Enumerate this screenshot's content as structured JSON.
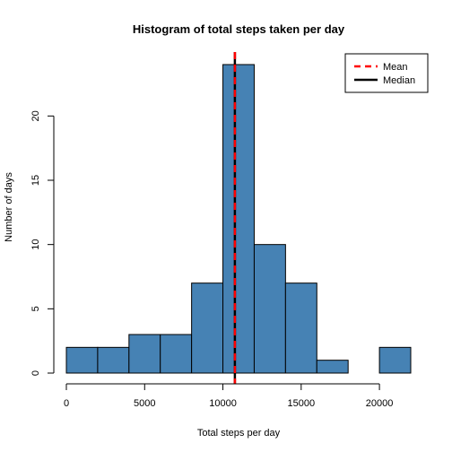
{
  "chart_data": {
    "type": "bar",
    "title": "Histogram of total steps taken per day",
    "xlabel": "Total steps per day",
    "ylabel": "Number of days",
    "bin_edges": [
      0,
      2000,
      4000,
      6000,
      8000,
      10000,
      12000,
      14000,
      16000,
      18000,
      20000,
      22000
    ],
    "values": [
      2,
      2,
      3,
      3,
      7,
      24,
      10,
      7,
      1,
      0,
      2
    ],
    "xlim": [
      0,
      22000
    ],
    "ylim": [
      0,
      24
    ],
    "x_ticks": [
      0,
      5000,
      10000,
      15000,
      20000
    ],
    "y_ticks": [
      0,
      5,
      10,
      15,
      20
    ],
    "x_tick_labels": [
      "0",
      "5000",
      "10000",
      "15000",
      "20000"
    ],
    "y_tick_labels": [
      "0",
      "5",
      "10",
      "15",
      "20"
    ],
    "bar_color": "#4682b4",
    "mean": 10766,
    "median": 10765,
    "mean_color": "#ff0000",
    "median_color": "#000000",
    "legend": {
      "position": "top-right",
      "entries": [
        {
          "label": "Mean",
          "color": "#ff0000",
          "style": "dashed"
        },
        {
          "label": "Median",
          "color": "#000000",
          "style": "solid"
        }
      ]
    },
    "grid": false
  }
}
